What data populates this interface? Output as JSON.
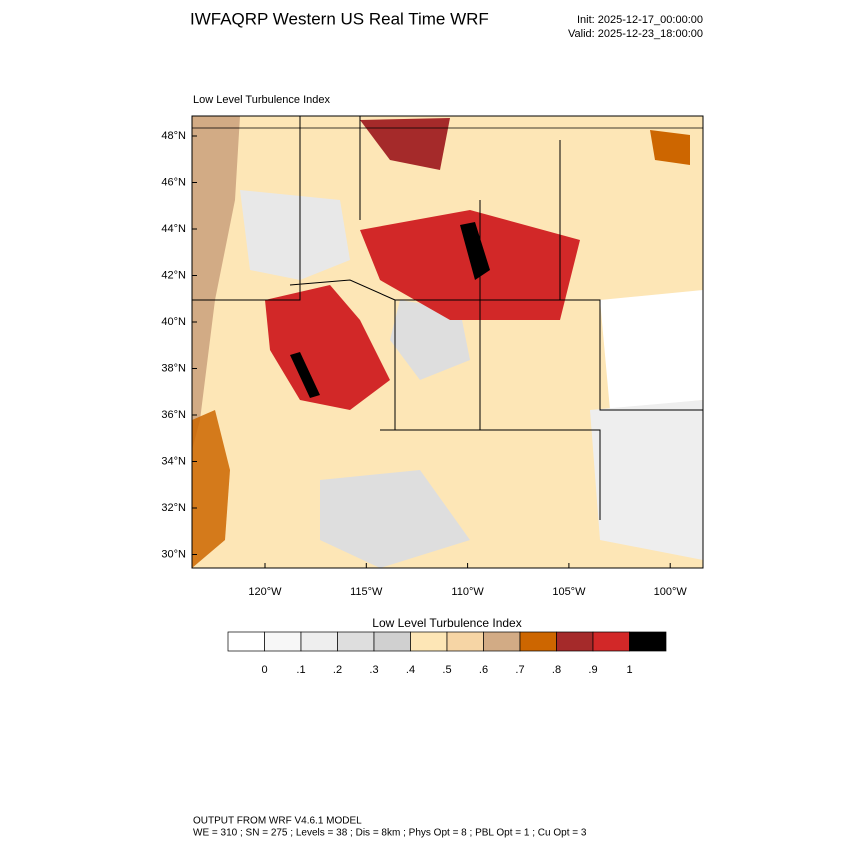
{
  "header": {
    "title": "IWFAQRP Western US Real Time WRF",
    "init": "Init: 2025-12-17_00:00:00",
    "valid": "Valid: 2025-12-23_18:00:00"
  },
  "map": {
    "subtitle": "Low Level Turbulence Index",
    "lat_labels": [
      "48°N",
      "46°N",
      "44°N",
      "42°N",
      "40°N",
      "38°N",
      "36°N",
      "34°N",
      "32°N",
      "30°N"
    ],
    "lon_labels": [
      "120°W",
      "115°W",
      "110°W",
      "105°W",
      "100°W"
    ]
  },
  "colorbar": {
    "title": "Low Level Turbulence Index",
    "labels": [
      "0",
      ".1",
      ".2",
      ".3",
      ".4",
      ".5",
      ".6",
      ".7",
      ".8",
      ".9",
      "1"
    ],
    "colors": [
      "#ffffff",
      "#f7f7f7",
      "#eeeeee",
      "#dedede",
      "#d0d0d0",
      "#fde6b6",
      "#f6d5a5",
      "#d2ab85",
      "#cd6600",
      "#a52a2a",
      "#d22828",
      "#000000"
    ]
  },
  "footer": {
    "line1": "OUTPUT FROM WRF V4.6.1 MODEL",
    "line2": "WE = 310 ; SN = 275 ; Levels = 38 ; Dis = 8km ; Phys Opt = 8 ; PBL Opt = 1 ; Cu Opt = 3"
  }
}
